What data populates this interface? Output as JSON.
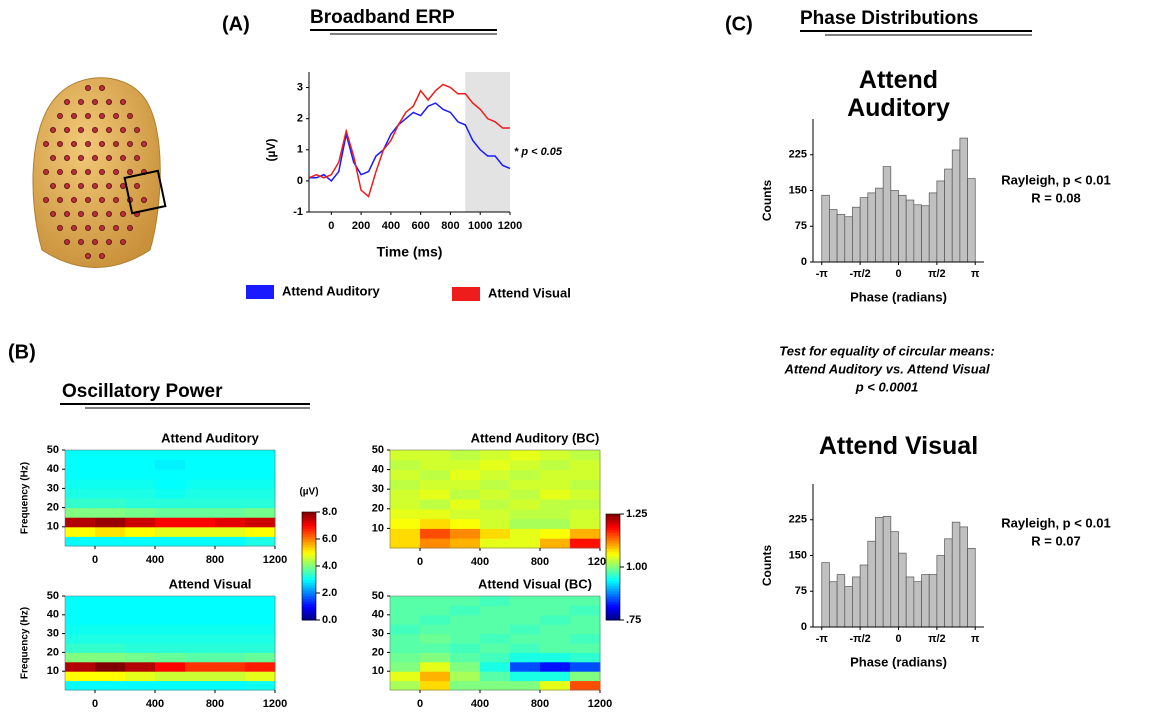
{
  "panels": {
    "a": "(A)",
    "b": "(B)",
    "c": "(C)"
  },
  "headings": {
    "erp": "Broadband ERP",
    "power": "Oscillatory Power",
    "phase": "Phase Distributions"
  },
  "circular_test": [
    "Test for equality of circular means:",
    "Attend Auditory vs. Attend Visual",
    "p < 0.0001"
  ],
  "chart_data": [
    {
      "type": "line",
      "xlabel": "Time (ms)",
      "ylabel": "(µV)",
      "annotation": "* p < 0.05",
      "x": [
        -150,
        -100,
        -50,
        0,
        50,
        100,
        150,
        200,
        250,
        300,
        350,
        400,
        450,
        500,
        550,
        600,
        650,
        700,
        750,
        800,
        850,
        900,
        950,
        1000,
        1050,
        1100,
        1150,
        1200
      ],
      "series": [
        {
          "name": "Attend Auditory",
          "color": "#1a1aff",
          "values": [
            0.1,
            0.1,
            0.2,
            0.0,
            0.3,
            1.5,
            0.6,
            0.2,
            0.3,
            0.8,
            1.0,
            1.5,
            1.8,
            2.0,
            2.2,
            2.1,
            2.4,
            2.5,
            2.3,
            2.2,
            1.9,
            1.8,
            1.3,
            1.0,
            0.8,
            0.8,
            0.5,
            0.4
          ]
        },
        {
          "name": "Attend Visual",
          "color": "#ee1c1c",
          "values": [
            0.1,
            0.2,
            0.1,
            0.2,
            0.6,
            1.6,
            0.8,
            -0.3,
            -0.5,
            0.3,
            1.0,
            1.3,
            1.8,
            2.2,
            2.4,
            2.9,
            2.6,
            2.9,
            3.1,
            3.0,
            2.8,
            2.8,
            2.5,
            2.3,
            2.0,
            1.9,
            1.7,
            1.7
          ]
        }
      ],
      "highlight": [
        900,
        1200
      ],
      "xlim": [
        -150,
        1200
      ],
      "ylim": [
        -1,
        3.5
      ],
      "xticks": [
        0,
        200,
        400,
        600,
        800,
        1000,
        1200
      ],
      "yticks": [
        -1,
        0,
        1,
        2,
        3
      ]
    },
    {
      "type": "heatmap",
      "title": "Attend Auditory",
      "ylabel": "Frequency (Hz)",
      "colormap": "jet",
      "x": [
        -100,
        100,
        300,
        500,
        700,
        900,
        1100
      ],
      "y": [
        2.5,
        7.5,
        12.5,
        17.5,
        22.5,
        27.5,
        32.5,
        37.5,
        42.5,
        47.5
      ],
      "z": [
        [
          3.0,
          3.0,
          3.0,
          3.0,
          3.0,
          3.0,
          3.2
        ],
        [
          5.0,
          5.2,
          5.0,
          4.8,
          4.8,
          4.8,
          5.0
        ],
        [
          7.6,
          7.8,
          7.4,
          7.0,
          7.0,
          7.2,
          7.4
        ],
        [
          4.0,
          4.0,
          3.9,
          3.8,
          3.8,
          3.8,
          3.9
        ],
        [
          3.4,
          3.4,
          3.3,
          3.3,
          3.3,
          3.3,
          3.3
        ],
        [
          3.2,
          3.2,
          3.2,
          3.1,
          3.2,
          3.2,
          3.2
        ],
        [
          3.1,
          3.1,
          3.1,
          3.0,
          3.1,
          3.1,
          3.1
        ],
        [
          3.0,
          3.0,
          3.0,
          3.0,
          3.0,
          3.0,
          3.0
        ],
        [
          3.0,
          3.0,
          3.0,
          2.9,
          3.0,
          3.0,
          3.0
        ],
        [
          3.0,
          3.0,
          3.0,
          3.0,
          3.0,
          3.0,
          3.0
        ]
      ],
      "xlim": [
        -200,
        1200
      ],
      "ylim": [
        0,
        50
      ],
      "xticks": [
        0,
        400,
        800,
        1200
      ],
      "yticks": [
        10,
        20,
        30,
        40,
        50
      ],
      "zlim": [
        0,
        8
      ],
      "zlabel": "(µV)",
      "zticks": [
        {
          "value": 0,
          "label": "0.0"
        },
        {
          "value": 2,
          "label": "2.0"
        },
        {
          "value": 4,
          "label": "4.0"
        },
        {
          "value": 6,
          "label": "6.0"
        },
        {
          "value": 8,
          "label": "8.0"
        }
      ]
    },
    {
      "type": "heatmap",
      "title": "Attend Visual",
      "ylabel": "Frequency (Hz)",
      "colormap": "jet",
      "x": [
        -100,
        100,
        300,
        500,
        700,
        900,
        1100
      ],
      "y": [
        2.5,
        7.5,
        12.5,
        17.5,
        22.5,
        27.5,
        32.5,
        37.5,
        42.5,
        47.5
      ],
      "z": [
        [
          3.0,
          3.0,
          3.0,
          3.0,
          3.0,
          3.0,
          3.1
        ],
        [
          5.0,
          5.0,
          4.8,
          4.6,
          4.6,
          4.6,
          4.8
        ],
        [
          7.6,
          8.0,
          7.6,
          7.0,
          6.6,
          6.6,
          6.8
        ],
        [
          4.0,
          4.0,
          3.9,
          3.8,
          3.7,
          3.7,
          3.8
        ],
        [
          3.4,
          3.4,
          3.3,
          3.3,
          3.3,
          3.3,
          3.3
        ],
        [
          3.2,
          3.2,
          3.2,
          3.2,
          3.2,
          3.2,
          3.2
        ],
        [
          3.1,
          3.1,
          3.1,
          3.1,
          3.1,
          3.1,
          3.1
        ],
        [
          3.0,
          3.0,
          3.0,
          3.0,
          3.0,
          3.0,
          3.0
        ],
        [
          3.0,
          3.0,
          3.0,
          3.0,
          3.0,
          3.0,
          3.0
        ],
        [
          3.0,
          3.0,
          3.0,
          3.0,
          3.0,
          3.0,
          3.0
        ]
      ],
      "xlim": [
        -200,
        1200
      ],
      "ylim": [
        0,
        50
      ],
      "xticks": [
        0,
        400,
        800,
        1200
      ],
      "yticks": [
        10,
        20,
        30,
        40,
        50
      ],
      "zlim": [
        0,
        8
      ]
    },
    {
      "type": "heatmap",
      "title": "Attend Auditory (BC)",
      "colormap": "jet",
      "x": [
        -100,
        100,
        300,
        500,
        700,
        900,
        1100
      ],
      "y": [
        2.5,
        7.5,
        12.5,
        17.5,
        22.5,
        27.5,
        32.5,
        37.5,
        42.5,
        47.5
      ],
      "z": [
        [
          1.08,
          1.12,
          1.1,
          1.05,
          1.05,
          1.1,
          1.18
        ],
        [
          1.08,
          1.15,
          1.12,
          1.08,
          1.05,
          1.06,
          1.1
        ],
        [
          1.06,
          1.08,
          1.06,
          1.04,
          1.02,
          1.02,
          1.04
        ],
        [
          1.05,
          1.05,
          1.04,
          1.04,
          1.03,
          1.03,
          1.04
        ],
        [
          1.04,
          1.03,
          1.05,
          1.03,
          1.04,
          1.03,
          1.03
        ],
        [
          1.04,
          1.05,
          1.03,
          1.04,
          1.03,
          1.05,
          1.04
        ],
        [
          1.03,
          1.04,
          1.04,
          1.03,
          1.04,
          1.04,
          1.03
        ],
        [
          1.04,
          1.03,
          1.05,
          1.04,
          1.03,
          1.04,
          1.04
        ],
        [
          1.03,
          1.04,
          1.04,
          1.05,
          1.04,
          1.03,
          1.04
        ],
        [
          1.04,
          1.04,
          1.03,
          1.04,
          1.05,
          1.04,
          1.03
        ]
      ],
      "xlim": [
        -200,
        1200
      ],
      "ylim": [
        0,
        50
      ],
      "xticks": [
        0,
        400,
        800,
        1200
      ],
      "yticks": [
        10,
        20,
        30,
        40,
        50
      ],
      "zlim": [
        0.75,
        1.25
      ],
      "zticks": [
        {
          "value": 0.75,
          "label": ".75"
        },
        {
          "value": 1,
          "label": "1.00"
        },
        {
          "value": 1.25,
          "label": "1.25"
        }
      ]
    },
    {
      "type": "heatmap",
      "title": "Attend Visual (BC)",
      "colormap": "jet",
      "x": [
        -100,
        100,
        300,
        500,
        700,
        900,
        1100
      ],
      "y": [
        2.5,
        7.5,
        12.5,
        17.5,
        22.5,
        27.5,
        32.5,
        37.5,
        42.5,
        47.5
      ],
      "z": [
        [
          1.02,
          1.08,
          1.0,
          1.0,
          1.0,
          1.05,
          1.15
        ],
        [
          1.05,
          1.1,
          1.02,
          0.98,
          0.95,
          0.95,
          1.0
        ],
        [
          1.0,
          1.05,
          1.0,
          0.95,
          0.85,
          0.82,
          0.85
        ],
        [
          0.99,
          1.0,
          0.98,
          0.97,
          0.95,
          0.95,
          0.96
        ],
        [
          0.98,
          0.98,
          0.97,
          0.98,
          0.97,
          0.98,
          0.98
        ],
        [
          0.98,
          0.99,
          0.98,
          0.97,
          0.98,
          0.98,
          0.97
        ],
        [
          0.97,
          0.98,
          0.98,
          0.98,
          0.97,
          0.98,
          0.98
        ],
        [
          0.98,
          0.97,
          0.98,
          0.98,
          0.98,
          0.97,
          0.98
        ],
        [
          0.98,
          0.98,
          0.97,
          0.98,
          0.98,
          0.98,
          0.97
        ],
        [
          0.98,
          0.98,
          0.98,
          0.97,
          0.98,
          0.98,
          0.98
        ]
      ],
      "xlim": [
        -200,
        1200
      ],
      "ylim": [
        0,
        50
      ],
      "xticks": [
        0,
        400,
        800,
        1200
      ],
      "yticks": [
        10,
        20,
        30,
        40,
        50
      ],
      "zlim": [
        0.75,
        1.25
      ]
    },
    {
      "type": "histogram",
      "title": "Attend Auditory",
      "xlabel": "Phase (radians)",
      "ylabel": "Counts",
      "color": "#c0c0c0",
      "bins": [
        -3.1416,
        -2.8274,
        -2.5133,
        -2.1991,
        -1.885,
        -1.5708,
        -1.2566,
        -0.9425,
        -0.6283,
        -0.3142,
        0,
        0.3142,
        0.6283,
        0.9425,
        1.2566,
        1.5708,
        1.885,
        2.1991,
        2.5133,
        2.8274,
        3.1416
      ],
      "values": [
        140,
        110,
        100,
        95,
        115,
        135,
        145,
        155,
        200,
        150,
        140,
        130,
        120,
        118,
        145,
        170,
        195,
        235,
        260,
        175
      ],
      "annotations": [
        "Rayleigh, p < 0.01",
        "R = 0.08"
      ],
      "xlim": [
        -3.5,
        3.5
      ],
      "ylim": [
        0,
        300
      ],
      "xticks": [
        {
          "value": -3.1416,
          "label": "-π"
        },
        {
          "value": -1.5708,
          "label": "-π/2"
        },
        0,
        {
          "value": 1.5708,
          "label": "π/2"
        },
        {
          "value": 3.1416,
          "label": "π"
        }
      ],
      "yticks": [
        0,
        75,
        150,
        225
      ]
    },
    {
      "type": "histogram",
      "title": "Attend Visual",
      "xlabel": "Phase (radians)",
      "ylabel": "Counts",
      "color": "#c0c0c0",
      "bins": [
        -3.1416,
        -2.8274,
        -2.5133,
        -2.1991,
        -1.885,
        -1.5708,
        -1.2566,
        -0.9425,
        -0.6283,
        -0.3142,
        0,
        0.3142,
        0.6283,
        0.9425,
        1.2566,
        1.5708,
        1.885,
        2.1991,
        2.5133,
        2.8274,
        3.1416
      ],
      "values": [
        135,
        95,
        110,
        85,
        105,
        130,
        180,
        230,
        232,
        200,
        155,
        105,
        95,
        110,
        110,
        150,
        185,
        220,
        210,
        165
      ],
      "annotations": [
        "Rayleigh, p < 0.01",
        "R = 0.07"
      ],
      "xlim": [
        -3.5,
        3.5
      ],
      "ylim": [
        0,
        300
      ],
      "xticks": [
        {
          "value": -3.1416,
          "label": "-π"
        },
        {
          "value": -1.5708,
          "label": "-π/2"
        },
        0,
        {
          "value": 1.5708,
          "label": "π/2"
        },
        {
          "value": 3.1416,
          "label": "π"
        }
      ],
      "yticks": [
        0,
        75,
        150,
        225
      ]
    }
  ]
}
